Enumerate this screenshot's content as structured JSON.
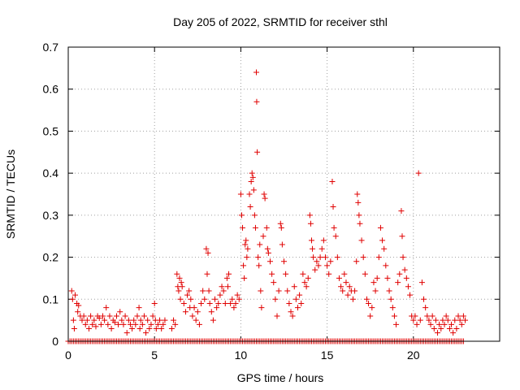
{
  "chart_data": {
    "type": "scatter",
    "title": "Day 205 of 2022, SRMTID for receiver sthl",
    "xlabel": "GPS time / hours",
    "ylabel": "SRMTID / TECUs",
    "xlim": [
      0,
      25
    ],
    "ylim": [
      0,
      0.7
    ],
    "xticks": [
      0,
      5,
      10,
      15,
      20
    ],
    "xtick_labels": [
      "0",
      "5",
      "10",
      "15",
      "20"
    ],
    "yticks": [
      0,
      0.1,
      0.2,
      0.3,
      0.4,
      0.5,
      0.6,
      0.7
    ],
    "ytick_labels": [
      "0",
      "0.1",
      "0.2",
      "0.3",
      "0.4",
      "0.5",
      "0.6",
      "0.7"
    ],
    "grid": true,
    "marker": "+",
    "color": "#e00000",
    "series": [
      {
        "name": "sthl",
        "points": [
          [
            0.2,
            0.12
          ],
          [
            0.25,
            0.1
          ],
          [
            0.3,
            0.05
          ],
          [
            0.35,
            0.03
          ],
          [
            0.4,
            0.11
          ],
          [
            0.5,
            0.09
          ],
          [
            0.55,
            0.07
          ],
          [
            0.6,
            0.085
          ],
          [
            0.7,
            0.06
          ],
          [
            0.8,
            0.05
          ],
          [
            0.9,
            0.06
          ],
          [
            1.0,
            0.04
          ],
          [
            1.1,
            0.05
          ],
          [
            1.2,
            0.03
          ],
          [
            1.3,
            0.06
          ],
          [
            1.4,
            0.04
          ],
          [
            1.5,
            0.05
          ],
          [
            1.6,
            0.035
          ],
          [
            1.7,
            0.06
          ],
          [
            1.8,
            0.055
          ],
          [
            1.9,
            0.04
          ],
          [
            2.0,
            0.06
          ],
          [
            2.1,
            0.05
          ],
          [
            2.2,
            0.08
          ],
          [
            2.3,
            0.04
          ],
          [
            2.4,
            0.06
          ],
          [
            2.5,
            0.03
          ],
          [
            2.6,
            0.05
          ],
          [
            2.7,
            0.045
          ],
          [
            2.8,
            0.06
          ],
          [
            2.9,
            0.04
          ],
          [
            3.0,
            0.07
          ],
          [
            3.1,
            0.05
          ],
          [
            3.2,
            0.04
          ],
          [
            3.3,
            0.06
          ],
          [
            3.4,
            0.02
          ],
          [
            3.5,
            0.05
          ],
          [
            3.6,
            0.04
          ],
          [
            3.7,
            0.03
          ],
          [
            3.8,
            0.05
          ],
          [
            3.9,
            0.04
          ],
          [
            4.0,
            0.06
          ],
          [
            4.1,
            0.08
          ],
          [
            4.15,
            0.03
          ],
          [
            4.2,
            0.05
          ],
          [
            4.3,
            0.04
          ],
          [
            4.4,
            0.06
          ],
          [
            4.5,
            0.02
          ],
          [
            4.6,
            0.05
          ],
          [
            4.7,
            0.03
          ],
          [
            4.8,
            0.04
          ],
          [
            4.9,
            0.06
          ],
          [
            5.0,
            0.09
          ],
          [
            5.05,
            0.05
          ],
          [
            5.1,
            0.03
          ],
          [
            5.2,
            0.04
          ],
          [
            5.3,
            0.05
          ],
          [
            5.4,
            0.03
          ],
          [
            5.5,
            0.04
          ],
          [
            5.6,
            0.05
          ],
          [
            6.0,
            0.03
          ],
          [
            6.1,
            0.05
          ],
          [
            6.2,
            0.04
          ],
          [
            6.3,
            0.16
          ],
          [
            6.35,
            0.13
          ],
          [
            6.4,
            0.12
          ],
          [
            6.45,
            0.15
          ],
          [
            6.5,
            0.1
          ],
          [
            6.55,
            0.14
          ],
          [
            6.6,
            0.13
          ],
          [
            6.7,
            0.09
          ],
          [
            6.8,
            0.07
          ],
          [
            6.9,
            0.11
          ],
          [
            7.0,
            0.12
          ],
          [
            7.05,
            0.08
          ],
          [
            7.1,
            0.1
          ],
          [
            7.2,
            0.06
          ],
          [
            7.3,
            0.08
          ],
          [
            7.4,
            0.05
          ],
          [
            7.5,
            0.07
          ],
          [
            7.6,
            0.04
          ],
          [
            7.7,
            0.09
          ],
          [
            7.8,
            0.12
          ],
          [
            7.9,
            0.1
          ],
          [
            8.0,
            0.22
          ],
          [
            8.05,
            0.16
          ],
          [
            8.1,
            0.21
          ],
          [
            8.15,
            0.12
          ],
          [
            8.2,
            0.09
          ],
          [
            8.3,
            0.07
          ],
          [
            8.4,
            0.05
          ],
          [
            8.5,
            0.1
          ],
          [
            8.6,
            0.08
          ],
          [
            8.7,
            0.09
          ],
          [
            8.8,
            0.11
          ],
          [
            8.9,
            0.13
          ],
          [
            9.0,
            0.12
          ],
          [
            9.1,
            0.09
          ],
          [
            9.2,
            0.15
          ],
          [
            9.25,
            0.13
          ],
          [
            9.3,
            0.16
          ],
          [
            9.4,
            0.09
          ],
          [
            9.5,
            0.1
          ],
          [
            9.6,
            0.08
          ],
          [
            9.7,
            0.09
          ],
          [
            9.8,
            0.11
          ],
          [
            9.9,
            0.1
          ],
          [
            10.0,
            0.35
          ],
          [
            10.05,
            0.3
          ],
          [
            10.1,
            0.27
          ],
          [
            10.15,
            0.18
          ],
          [
            10.2,
            0.15
          ],
          [
            10.25,
            0.23
          ],
          [
            10.3,
            0.24
          ],
          [
            10.35,
            0.2
          ],
          [
            10.4,
            0.22
          ],
          [
            10.5,
            0.35
          ],
          [
            10.55,
            0.32
          ],
          [
            10.6,
            0.38
          ],
          [
            10.65,
            0.4
          ],
          [
            10.7,
            0.39
          ],
          [
            10.75,
            0.36
          ],
          [
            10.8,
            0.3
          ],
          [
            10.85,
            0.27
          ],
          [
            10.9,
            0.64
          ],
          [
            10.92,
            0.57
          ],
          [
            10.95,
            0.45
          ],
          [
            11.0,
            0.2
          ],
          [
            11.05,
            0.18
          ],
          [
            11.1,
            0.23
          ],
          [
            11.15,
            0.12
          ],
          [
            11.2,
            0.08
          ],
          [
            11.3,
            0.25
          ],
          [
            11.35,
            0.35
          ],
          [
            11.4,
            0.34
          ],
          [
            11.5,
            0.27
          ],
          [
            11.55,
            0.22
          ],
          [
            11.6,
            0.21
          ],
          [
            11.7,
            0.19
          ],
          [
            11.8,
            0.16
          ],
          [
            11.9,
            0.14
          ],
          [
            12.0,
            0.1
          ],
          [
            12.1,
            0.06
          ],
          [
            12.2,
            0.12
          ],
          [
            12.3,
            0.28
          ],
          [
            12.35,
            0.27
          ],
          [
            12.4,
            0.23
          ],
          [
            12.5,
            0.19
          ],
          [
            12.6,
            0.16
          ],
          [
            12.7,
            0.12
          ],
          [
            12.8,
            0.09
          ],
          [
            12.9,
            0.07
          ],
          [
            13.0,
            0.06
          ],
          [
            13.1,
            0.13
          ],
          [
            13.2,
            0.1
          ],
          [
            13.3,
            0.08
          ],
          [
            13.4,
            0.11
          ],
          [
            13.5,
            0.09
          ],
          [
            13.6,
            0.16
          ],
          [
            13.7,
            0.14
          ],
          [
            13.8,
            0.13
          ],
          [
            13.9,
            0.15
          ],
          [
            14.0,
            0.3
          ],
          [
            14.05,
            0.28
          ],
          [
            14.1,
            0.24
          ],
          [
            14.15,
            0.22
          ],
          [
            14.2,
            0.2
          ],
          [
            14.3,
            0.17
          ],
          [
            14.4,
            0.19
          ],
          [
            14.5,
            0.18
          ],
          [
            14.6,
            0.2
          ],
          [
            14.7,
            0.22
          ],
          [
            14.8,
            0.24
          ],
          [
            14.9,
            0.2
          ],
          [
            15.0,
            0.18
          ],
          [
            15.1,
            0.16
          ],
          [
            15.2,
            0.19
          ],
          [
            15.3,
            0.38
          ],
          [
            15.35,
            0.32
          ],
          [
            15.4,
            0.27
          ],
          [
            15.5,
            0.25
          ],
          [
            15.6,
            0.2
          ],
          [
            15.7,
            0.15
          ],
          [
            15.8,
            0.13
          ],
          [
            15.9,
            0.12
          ],
          [
            16.0,
            0.16
          ],
          [
            16.1,
            0.14
          ],
          [
            16.2,
            0.11
          ],
          [
            16.3,
            0.13
          ],
          [
            16.4,
            0.12
          ],
          [
            16.5,
            0.1
          ],
          [
            16.6,
            0.12
          ],
          [
            16.7,
            0.19
          ],
          [
            16.75,
            0.35
          ],
          [
            16.8,
            0.33
          ],
          [
            16.85,
            0.3
          ],
          [
            16.9,
            0.28
          ],
          [
            17.0,
            0.24
          ],
          [
            17.1,
            0.2
          ],
          [
            17.2,
            0.16
          ],
          [
            17.3,
            0.1
          ],
          [
            17.4,
            0.09
          ],
          [
            17.5,
            0.06
          ],
          [
            17.6,
            0.08
          ],
          [
            17.7,
            0.14
          ],
          [
            17.8,
            0.12
          ],
          [
            17.9,
            0.15
          ],
          [
            18.0,
            0.2
          ],
          [
            18.1,
            0.27
          ],
          [
            18.2,
            0.24
          ],
          [
            18.3,
            0.22
          ],
          [
            18.4,
            0.18
          ],
          [
            18.5,
            0.15
          ],
          [
            18.6,
            0.12
          ],
          [
            18.7,
            0.1
          ],
          [
            18.8,
            0.08
          ],
          [
            18.9,
            0.06
          ],
          [
            19.0,
            0.04
          ],
          [
            19.1,
            0.14
          ],
          [
            19.2,
            0.16
          ],
          [
            19.3,
            0.31
          ],
          [
            19.35,
            0.25
          ],
          [
            19.4,
            0.2
          ],
          [
            19.5,
            0.17
          ],
          [
            19.6,
            0.15
          ],
          [
            19.7,
            0.13
          ],
          [
            19.8,
            0.11
          ],
          [
            19.9,
            0.06
          ],
          [
            20.0,
            0.05
          ],
          [
            20.1,
            0.06
          ],
          [
            20.2,
            0.04
          ],
          [
            20.3,
            0.4
          ],
          [
            20.4,
            0.05
          ],
          [
            20.5,
            0.14
          ],
          [
            20.6,
            0.1
          ],
          [
            20.7,
            0.08
          ],
          [
            20.8,
            0.06
          ],
          [
            20.9,
            0.05
          ],
          [
            21.0,
            0.04
          ],
          [
            21.1,
            0.06
          ],
          [
            21.2,
            0.03
          ],
          [
            21.3,
            0.05
          ],
          [
            21.4,
            0.02
          ],
          [
            21.5,
            0.04
          ],
          [
            21.6,
            0.03
          ],
          [
            21.7,
            0.05
          ],
          [
            21.8,
            0.04
          ],
          [
            21.9,
            0.06
          ],
          [
            22.0,
            0.05
          ],
          [
            22.1,
            0.03
          ],
          [
            22.2,
            0.04
          ],
          [
            22.3,
            0.02
          ],
          [
            22.4,
            0.05
          ],
          [
            22.5,
            0.03
          ],
          [
            22.6,
            0.06
          ],
          [
            22.7,
            0.05
          ],
          [
            22.8,
            0.04
          ],
          [
            22.9,
            0.06
          ],
          [
            23.0,
            0.05
          ]
        ],
        "zero_line": {
          "x_start": 0.0,
          "x_end": 22.9,
          "y": 0,
          "step": 0.1
        }
      }
    ]
  }
}
